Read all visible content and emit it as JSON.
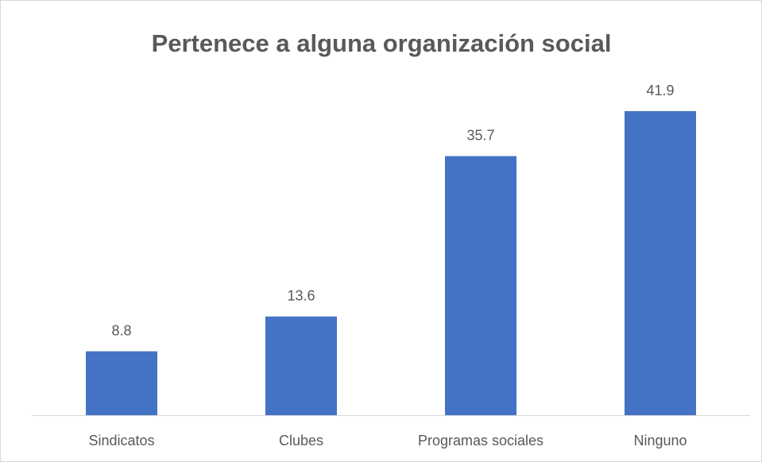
{
  "chart_data": {
    "type": "bar",
    "title": "Pertenece a alguna organización social",
    "categories": [
      "Sindicatos",
      "Clubes",
      "Programas sociales",
      "Ninguno"
    ],
    "values": [
      8.8,
      13.6,
      35.7,
      41.9
    ],
    "color": "#4472c4"
  }
}
